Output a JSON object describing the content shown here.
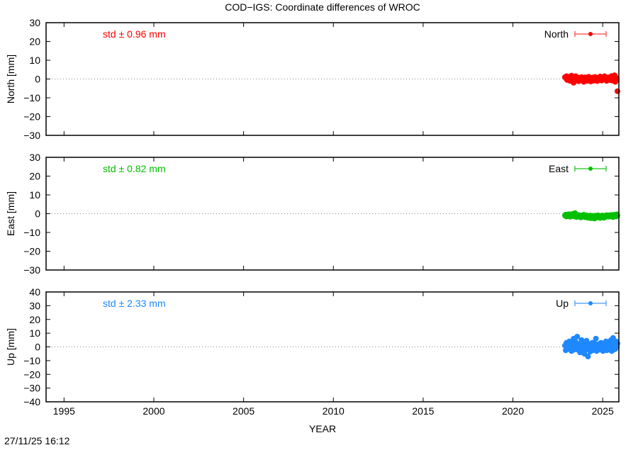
{
  "title": "COD−IGS: Coordinate differences of WROC",
  "xlabel": "YEAR",
  "timestamp": "27/11/25 16:12",
  "chart_data": [
    {
      "type": "scatter",
      "ylabel": "North [mm]",
      "series": [
        {
          "name": "North",
          "color": "#ff0000",
          "legend_bar_color": "#ff6060"
        }
      ],
      "annotation": "std ± 0.96 mm",
      "ylim": [
        -30,
        30
      ],
      "yticks": [
        -30,
        -20,
        -10,
        0,
        10,
        20,
        30
      ],
      "xlim": [
        1994,
        2025.9
      ],
      "xticks": [
        1995,
        2000,
        2005,
        2010,
        2015,
        2020,
        2025
      ],
      "legend": "top-right",
      "x": [
        2022.9,
        2022.94,
        2022.98,
        2023.02,
        2023.06,
        2023.1,
        2023.14,
        2023.18,
        2023.22,
        2023.26,
        2023.3,
        2023.34,
        2023.38,
        2023.42,
        2023.46,
        2023.5,
        2023.54,
        2023.58,
        2023.62,
        2023.66,
        2023.7,
        2023.74,
        2023.78,
        2023.82,
        2023.86,
        2023.9,
        2023.94,
        2023.98,
        2024.02,
        2024.06,
        2024.1,
        2024.14,
        2024.18,
        2024.22,
        2024.26,
        2024.3,
        2024.34,
        2024.38,
        2024.42,
        2024.46,
        2024.5,
        2024.54,
        2024.58,
        2024.62,
        2024.66,
        2024.7,
        2024.74,
        2024.78,
        2024.82,
        2024.86,
        2024.9,
        2024.94,
        2024.98,
        2025.02,
        2025.06,
        2025.1,
        2025.14,
        2025.18,
        2025.22,
        2025.26,
        2025.3,
        2025.34,
        2025.38,
        2025.42,
        2025.46,
        2025.5,
        2025.54,
        2025.58,
        2025.62,
        2025.66,
        2025.7,
        2025.74,
        2025.78,
        2025.82
      ],
      "values": [
        1.0,
        0.5,
        1.5,
        -0.5,
        0.8,
        1.2,
        0.0,
        -1.0,
        0.5,
        1.8,
        0.3,
        -0.8,
        -2.0,
        -1.0,
        0.5,
        1.5,
        0.2,
        -0.5,
        0.8,
        -1.2,
        0.0,
        0.6,
        -0.3,
        1.0,
        -0.8,
        0.4,
        -1.5,
        0.2,
        0.9,
        -0.6,
        0.3,
        -1.0,
        0.5,
        1.2,
        -0.4,
        0.0,
        -1.3,
        0.6,
        -0.2,
        0.8,
        -0.9,
        0.3,
        1.1,
        -0.5,
        0.2,
        -1.1,
        0.7,
        0.0,
        -0.6,
        1.3,
        0.4,
        -0.8,
        0.9,
        -0.3,
        0.5,
        1.5,
        -0.2,
        0.6,
        -1.0,
        0.8,
        0.2,
        -0.5,
        1.0,
        0.3,
        -0.7,
        1.6,
        0.4,
        -0.9,
        0.6,
        2.0,
        -1.5,
        0.8,
        -0.5,
        -6.5
      ]
    },
    {
      "type": "scatter",
      "ylabel": "East [mm]",
      "series": [
        {
          "name": "East",
          "color": "#00c000",
          "legend_bar_color": "#40d040"
        }
      ],
      "annotation": "std ± 0.82 mm",
      "ylim": [
        -30,
        30
      ],
      "yticks": [
        -30,
        -20,
        -10,
        0,
        10,
        20,
        30
      ],
      "xlim": [
        1994,
        2025.9
      ],
      "xticks": [
        1995,
        2000,
        2005,
        2010,
        2015,
        2020,
        2025
      ],
      "legend": "top-right",
      "x": [
        2022.9,
        2022.94,
        2022.98,
        2023.02,
        2023.06,
        2023.1,
        2023.14,
        2023.18,
        2023.22,
        2023.26,
        2023.3,
        2023.34,
        2023.38,
        2023.42,
        2023.46,
        2023.5,
        2023.54,
        2023.58,
        2023.62,
        2023.66,
        2023.7,
        2023.74,
        2023.78,
        2023.82,
        2023.86,
        2023.9,
        2023.94,
        2023.98,
        2024.02,
        2024.06,
        2024.1,
        2024.14,
        2024.18,
        2024.22,
        2024.26,
        2024.3,
        2024.34,
        2024.38,
        2024.42,
        2024.46,
        2024.5,
        2024.54,
        2024.58,
        2024.62,
        2024.66,
        2024.7,
        2024.74,
        2024.78,
        2024.82,
        2024.86,
        2024.9,
        2024.94,
        2024.98,
        2025.02,
        2025.06,
        2025.1,
        2025.14,
        2025.18,
        2025.22,
        2025.26,
        2025.3,
        2025.34,
        2025.38,
        2025.42,
        2025.46,
        2025.5,
        2025.54,
        2025.58,
        2025.62,
        2025.66,
        2025.7,
        2025.74,
        2025.78,
        2025.82
      ],
      "values": [
        -1.0,
        -0.5,
        -1.5,
        -0.8,
        -1.2,
        -0.3,
        -1.0,
        -1.6,
        -0.6,
        -1.1,
        -0.2,
        -0.9,
        -1.4,
        -0.4,
        0.3,
        -1.0,
        -1.8,
        -0.7,
        -1.2,
        -1.5,
        -0.8,
        -1.3,
        -2.0,
        -1.0,
        -1.6,
        -1.1,
        -0.6,
        -1.4,
        -1.9,
        -1.2,
        -0.9,
        -1.5,
        -2.2,
        -1.3,
        -1.8,
        -1.0,
        -2.4,
        -1.6,
        -1.2,
        -2.0,
        -1.4,
        -2.6,
        -1.1,
        -1.7,
        -2.1,
        -1.3,
        -0.9,
        -1.8,
        -1.5,
        -2.3,
        -1.2,
        -1.9,
        -1.0,
        -1.6,
        -2.2,
        -1.4,
        -1.1,
        -1.7,
        -0.8,
        -1.5,
        -1.3,
        -0.9,
        -1.6,
        -1.1,
        -0.7,
        -1.4,
        -1.0,
        -1.8,
        -0.6,
        -1.2,
        -0.9,
        -1.5,
        -0.4,
        -1.0
      ]
    },
    {
      "type": "scatter",
      "ylabel": "Up [mm]",
      "series": [
        {
          "name": "Up",
          "color": "#1e88ff",
          "legend_bar_color": "#60aaff"
        }
      ],
      "annotation": "std ± 2.33 mm",
      "ylim": [
        -40,
        40
      ],
      "yticks": [
        -40,
        -30,
        -20,
        -10,
        0,
        10,
        20,
        30,
        40
      ],
      "xlim": [
        1994,
        2025.9
      ],
      "xticks": [
        1995,
        2000,
        2005,
        2010,
        2015,
        2020,
        2025
      ],
      "legend": "top-right",
      "x": [
        2022.9,
        2022.94,
        2022.98,
        2023.02,
        2023.06,
        2023.1,
        2023.14,
        2023.18,
        2023.22,
        2023.26,
        2023.3,
        2023.34,
        2023.38,
        2023.42,
        2023.46,
        2023.5,
        2023.54,
        2023.58,
        2023.62,
        2023.66,
        2023.7,
        2023.74,
        2023.78,
        2023.82,
        2023.86,
        2023.9,
        2023.94,
        2023.98,
        2024.02,
        2024.06,
        2024.1,
        2024.14,
        2024.18,
        2024.22,
        2024.26,
        2024.3,
        2024.34,
        2024.38,
        2024.42,
        2024.46,
        2024.5,
        2024.54,
        2024.58,
        2024.62,
        2024.66,
        2024.7,
        2024.74,
        2024.78,
        2024.82,
        2024.86,
        2024.9,
        2024.94,
        2024.98,
        2025.02,
        2025.06,
        2025.1,
        2025.14,
        2025.18,
        2025.22,
        2025.26,
        2025.3,
        2025.34,
        2025.38,
        2025.42,
        2025.46,
        2025.5,
        2025.54,
        2025.58,
        2025.62,
        2025.66,
        2025.7,
        2025.74,
        2025.78,
        2025.82
      ],
      "values": [
        1.0,
        -2.5,
        3.0,
        0.5,
        -1.5,
        2.0,
        4.0,
        -0.5,
        1.5,
        -3.0,
        2.5,
        0.0,
        6.0,
        -2.0,
        1.0,
        3.5,
        -1.0,
        7.5,
        0.5,
        -2.5,
        2.0,
        -4.0,
        1.5,
        5.0,
        -1.5,
        0.0,
        3.0,
        -5.0,
        1.0,
        -2.0,
        4.5,
        -1.0,
        -7.0,
        0.5,
        2.0,
        -3.5,
        1.0,
        -0.5,
        3.0,
        -2.5,
        0.0,
        2.5,
        -1.5,
        6.0,
        -3.0,
        1.0,
        -0.5,
        2.0,
        -2.0,
        0.5,
        3.0,
        -1.5,
        1.0,
        -3.0,
        2.5,
        0.0,
        -1.0,
        4.0,
        -2.5,
        1.5,
        0.5,
        -2.0,
        3.5,
        -1.0,
        5.0,
        -3.0,
        1.0,
        6.5,
        -2.0,
        2.0,
        -1.5,
        4.0,
        0.0,
        2.5
      ]
    }
  ]
}
